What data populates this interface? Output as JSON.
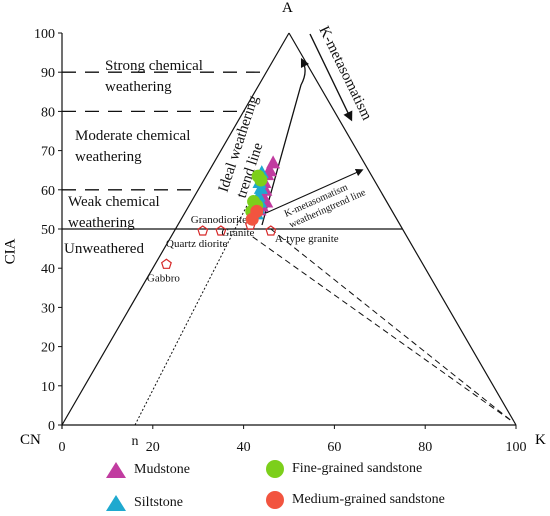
{
  "chart_data": {
    "type": "scatter",
    "title": "",
    "apex_labels": {
      "top": "A",
      "left": "CN",
      "right": "K"
    },
    "ylabel": "CIA",
    "ylim": [
      0,
      100
    ],
    "yticks": [
      0,
      10,
      20,
      30,
      40,
      50,
      60,
      70,
      80,
      90,
      100
    ],
    "xlim": [
      0,
      100
    ],
    "xticks": [
      0,
      20,
      40,
      60,
      80,
      100
    ],
    "xmarker": "n",
    "zones": [
      {
        "label_lines": [
          "Strong chemical",
          "weathering"
        ],
        "range": [
          80,
          100
        ]
      },
      {
        "label_lines": [
          "Moderate chemical",
          "weathering"
        ],
        "range": [
          60,
          80
        ]
      },
      {
        "label_lines": [
          "Weak chemical",
          "weathering"
        ],
        "range": [
          50,
          60
        ]
      },
      {
        "label_lines": [
          "Unweathered"
        ],
        "range": [
          0,
          50
        ]
      }
    ],
    "annotations": {
      "k_metasomatism": "K-metasomatism",
      "ideal_trend": [
        "Ideal weathering",
        "trend line"
      ],
      "k_trend": [
        "K-metasomatism",
        "weatheringtrend line"
      ]
    },
    "reference_rocks": [
      {
        "name": "Gabbro",
        "x": 23,
        "cia": 41
      },
      {
        "name": "Quartz diorite",
        "x": 31,
        "cia": 49.5
      },
      {
        "name": "Granodiorite",
        "x": 35,
        "cia": 49.5
      },
      {
        "name": "Granite",
        "x": 41.5,
        "cia": 51
      },
      {
        "name": "A-type granite",
        "x": 46,
        "cia": 49.5
      }
    ],
    "series": [
      {
        "name": "Mudstone",
        "marker": "triangle",
        "color": "#c13ca0",
        "x": [
          46.5,
          45.8,
          45.2,
          44.6,
          44.2,
          43.8,
          45.0,
          44.0,
          43.5,
          44.8
        ],
        "cia": [
          67,
          65,
          64,
          62,
          60.5,
          59,
          57,
          56,
          55,
          60
        ]
      },
      {
        "name": "Siltstone",
        "marker": "triangle",
        "color": "#1fa9cf",
        "x": [
          44.0,
          43.5,
          43.8,
          43.3,
          43.6,
          43.2,
          42.9
        ],
        "cia": [
          64.5,
          62,
          60.5,
          58.5,
          57,
          55.5,
          54
        ]
      },
      {
        "name": "Fine-grained sandstone",
        "marker": "circle",
        "color": "#7ccf1b",
        "x": [
          43.2,
          43.8,
          42.2,
          42.9,
          41.8
        ],
        "cia": [
          63.5,
          62.5,
          57,
          56,
          54.5
        ]
      },
      {
        "name": "Medium-grained sandstone",
        "marker": "circle",
        "color": "#f2543f",
        "x": [
          42.9,
          41.9
        ],
        "cia": [
          54.5,
          52.5
        ]
      }
    ]
  }
}
